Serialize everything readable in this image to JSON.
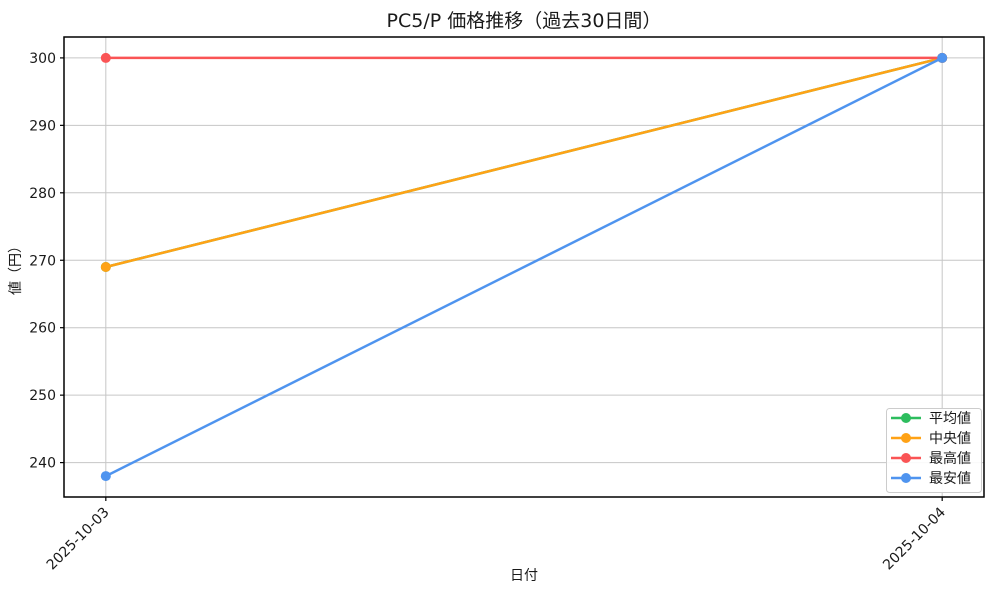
{
  "figure": {
    "background": "#ffffff"
  },
  "chart_data": {
    "type": "line",
    "title": "PC5/P 価格推移（過去30日間）",
    "xlabel": "日付",
    "ylabel": "値（円）",
    "categories": [
      "2025-10-03",
      "2025-10-04"
    ],
    "series": [
      {
        "name": "平均値",
        "color": "#2dbd5e",
        "values": [
          269,
          300
        ]
      },
      {
        "name": "中央値",
        "color": "#ffa216",
        "values": [
          269,
          300
        ]
      },
      {
        "name": "最高値",
        "color": "#fa5455",
        "values": [
          300,
          300
        ]
      },
      {
        "name": "最安値",
        "color": "#4f94ef",
        "values": [
          238,
          300
        ]
      }
    ],
    "yticks": [
      240,
      250,
      260,
      270,
      280,
      290,
      300
    ],
    "ylim": [
      234.9,
      303.1
    ],
    "xlim": [
      -0.05,
      1.05
    ],
    "grid": true,
    "grid_color": "#c6c6c6",
    "axis_color": "#000000",
    "text_color": "#1a1a1a",
    "legend_position": "lower right",
    "marker": "circle"
  }
}
